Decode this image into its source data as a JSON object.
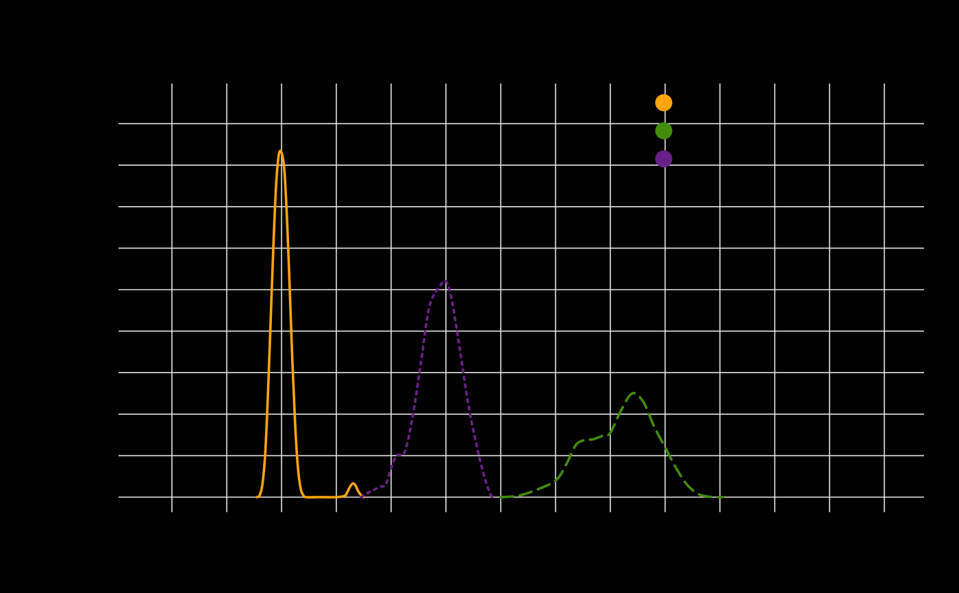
{
  "chart_data": {
    "type": "line",
    "title": "",
    "xlabel": "",
    "ylabel": "",
    "xlim": [
      -2.98,
      11.72
    ],
    "ylim": [
      0,
      9.0
    ],
    "x_gridlines": [
      -2,
      -1,
      0,
      1,
      2,
      3,
      4,
      5,
      6,
      7,
      8,
      9,
      10,
      11
    ],
    "y_gridlines": [
      0,
      1,
      2,
      3,
      4,
      5,
      6,
      7,
      8,
      9
    ],
    "grid": true,
    "legend_position": "top-right",
    "colors": {
      "background": "#000000",
      "grid": "#e6e6e6"
    },
    "series": [
      {
        "color": "#ffa50f",
        "dash": "solid",
        "points": [
          [
            -0.45,
            0.0
          ],
          [
            -0.4,
            0.04
          ],
          [
            -0.35,
            0.3
          ],
          [
            -0.3,
            1.0
          ],
          [
            -0.25,
            2.4
          ],
          [
            -0.2,
            4.2
          ],
          [
            -0.15,
            6.0
          ],
          [
            -0.1,
            7.5
          ],
          [
            -0.05,
            8.25
          ],
          [
            0.0,
            8.3
          ],
          [
            0.05,
            7.9
          ],
          [
            0.1,
            6.7
          ],
          [
            0.15,
            5.0
          ],
          [
            0.2,
            3.2
          ],
          [
            0.25,
            1.7
          ],
          [
            0.3,
            0.7
          ],
          [
            0.35,
            0.2
          ],
          [
            0.4,
            0.04
          ],
          [
            0.45,
            0.0
          ],
          [
            0.7,
            0.0
          ],
          [
            1.0,
            0.0
          ],
          [
            1.15,
            0.03
          ],
          [
            1.2,
            0.12
          ],
          [
            1.25,
            0.25
          ],
          [
            1.3,
            0.33
          ],
          [
            1.35,
            0.28
          ],
          [
            1.4,
            0.14
          ],
          [
            1.45,
            0.05
          ],
          [
            1.5,
            0.0
          ]
        ]
      },
      {
        "color": "#428c09",
        "dash": "dashed",
        "points": [
          [
            4.0,
            0.0
          ],
          [
            4.3,
            0.03
          ],
          [
            4.6,
            0.15
          ],
          [
            5.0,
            0.4
          ],
          [
            5.2,
            0.8
          ],
          [
            5.4,
            1.3
          ],
          [
            5.7,
            1.4
          ],
          [
            5.9,
            1.5
          ],
          [
            6.0,
            1.55
          ],
          [
            6.2,
            2.1
          ],
          [
            6.4,
            2.5
          ],
          [
            6.6,
            2.3
          ],
          [
            6.8,
            1.7
          ],
          [
            7.0,
            1.2
          ],
          [
            7.2,
            0.7
          ],
          [
            7.4,
            0.3
          ],
          [
            7.6,
            0.08
          ],
          [
            7.8,
            0.01
          ],
          [
            8.05,
            0.0
          ]
        ]
      },
      {
        "color": "#6a2089",
        "dash": "dotted",
        "points": [
          [
            1.45,
            0.0
          ],
          [
            1.6,
            0.12
          ],
          [
            1.8,
            0.25
          ],
          [
            1.9,
            0.3
          ],
          [
            2.0,
            0.7
          ],
          [
            2.1,
            1.0
          ],
          [
            2.25,
            1.1
          ],
          [
            2.4,
            2.0
          ],
          [
            2.55,
            3.3
          ],
          [
            2.7,
            4.6
          ],
          [
            2.9,
            5.1
          ],
          [
            3.0,
            5.2
          ],
          [
            3.1,
            4.8
          ],
          [
            3.25,
            3.6
          ],
          [
            3.4,
            2.3
          ],
          [
            3.55,
            1.3
          ],
          [
            3.7,
            0.5
          ],
          [
            3.82,
            0.05
          ],
          [
            3.9,
            0.0
          ]
        ]
      }
    ]
  }
}
